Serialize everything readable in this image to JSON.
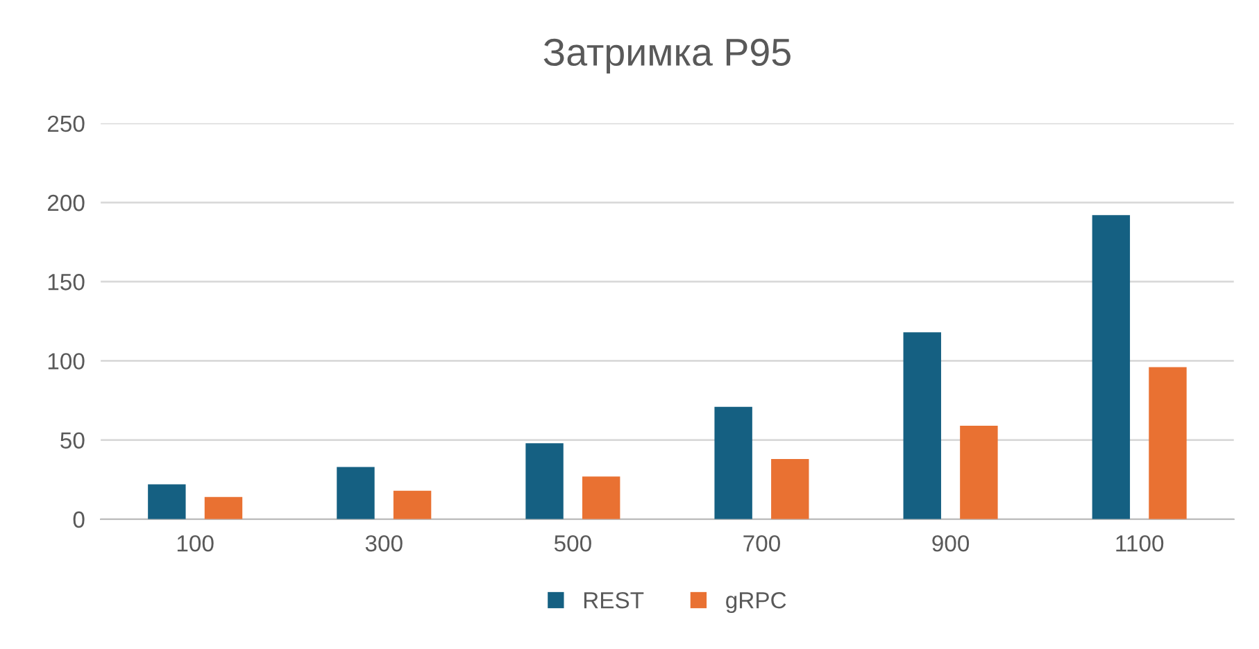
{
  "chart_data": {
    "type": "bar",
    "title": "Затримка P95",
    "categories": [
      "100",
      "300",
      "500",
      "700",
      "900",
      "1100"
    ],
    "series": [
      {
        "name": "REST",
        "color": "#156082",
        "values": [
          22,
          33,
          48,
          71,
          118,
          192
        ]
      },
      {
        "name": "gRPC",
        "color": "#e97132",
        "values": [
          14,
          18,
          27,
          38,
          59,
          96
        ]
      }
    ],
    "ylim": [
      0,
      250
    ],
    "yticks": [
      0,
      50,
      100,
      150,
      200,
      250
    ],
    "grid": "y",
    "legend": "bottom"
  }
}
